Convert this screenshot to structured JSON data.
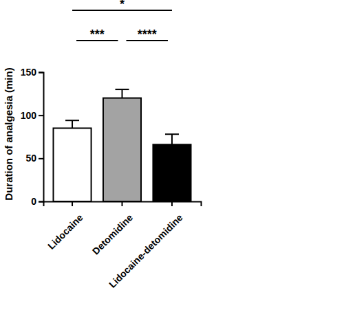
{
  "chart_data": {
    "type": "bar",
    "y_label": "Duration of analgesia (min)",
    "categories": [
      "Lidocaine",
      "Detomidine",
      "Lidocaine-detomidine"
    ],
    "values": [
      85,
      120,
      66
    ],
    "errors": [
      9,
      10,
      12
    ],
    "colors": [
      "#ffffff",
      "#a3a3a3",
      "#000000"
    ],
    "ylim": [
      0,
      150
    ],
    "yticks": [
      0,
      50,
      100,
      150
    ],
    "grid": false,
    "annotations": [
      {
        "text": "*",
        "between": [
          "Lidocaine",
          "Lidocaine-detomidine"
        ]
      },
      {
        "text": "***",
        "between": [
          "Lidocaine",
          "Detomidine"
        ]
      },
      {
        "text": "****",
        "between": [
          "Detomidine",
          "Lidocaine-detomidine"
        ]
      }
    ]
  }
}
